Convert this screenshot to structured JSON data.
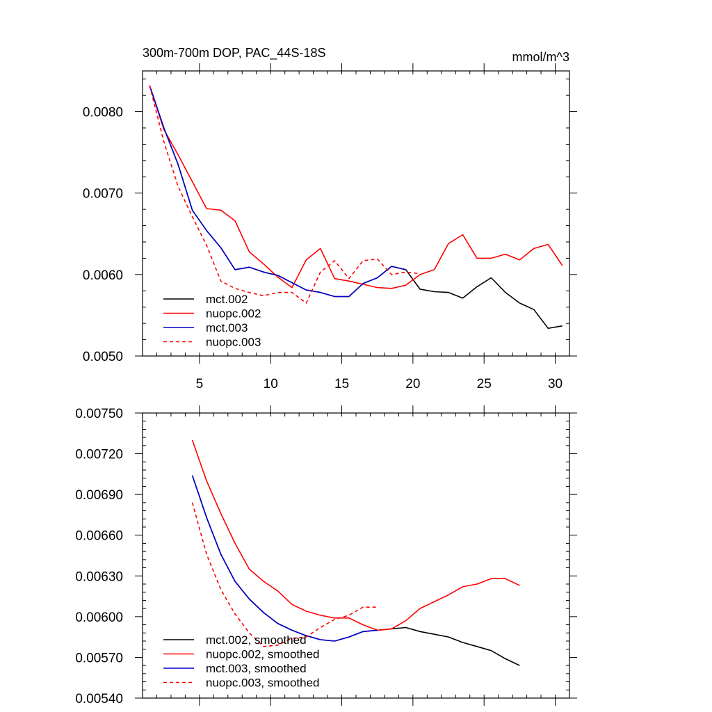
{
  "chart_data": [
    {
      "type": "line",
      "title": "300m-700m DOP, PAC_44S-18S",
      "units": "mmol/m^3",
      "xlim": [
        1,
        31
      ],
      "ylim": [
        0.005,
        0.0085
      ],
      "x_ticks": [
        5,
        10,
        15,
        20,
        25,
        30
      ],
      "x_tick_labels": [
        "5",
        "10",
        "15",
        "20",
        "25",
        "30"
      ],
      "y_ticks": [
        0.005,
        0.006,
        0.007,
        0.008
      ],
      "y_tick_labels": [
        "0.0050",
        "0.0060",
        "0.0070",
        "0.0080"
      ],
      "legend_position": "bottom-left",
      "series": [
        {
          "name": "mct.002",
          "color": "#000000",
          "dash": "solid",
          "x": [
            1.5,
            2.5,
            3.5,
            4.5,
            5.5,
            6.5,
            7.5,
            8.5,
            9.5,
            10.5,
            11.5,
            12.5,
            13.5,
            14.5,
            15.5,
            16.5,
            17.5,
            18.5,
            19.5,
            20.5,
            21.5,
            22.5,
            23.5,
            24.5,
            25.5,
            26.5,
            27.5,
            28.5,
            29.5,
            30.5
          ],
          "values": [
            0.00832,
            0.0078,
            0.00735,
            0.00679,
            0.00654,
            0.00633,
            0.00606,
            0.00609,
            0.00603,
            0.00599,
            0.0059,
            0.00581,
            0.00578,
            0.00573,
            0.00573,
            0.00589,
            0.00596,
            0.0061,
            0.00606,
            0.00582,
            0.00579,
            0.00578,
            0.00571,
            0.00585,
            0.00596,
            0.00578,
            0.00565,
            0.00557,
            0.00534,
            0.00537
          ]
        },
        {
          "name": "nuopc.002",
          "color": "#ff0000",
          "dash": "solid",
          "x": [
            1.5,
            2.5,
            3.5,
            4.5,
            5.5,
            6.5,
            7.5,
            8.5,
            9.5,
            10.5,
            11.5,
            12.5,
            13.5,
            14.5,
            15.5,
            16.5,
            17.5,
            18.5,
            19.5,
            20.5,
            21.5,
            22.5,
            23.5,
            24.5,
            25.5,
            26.5,
            27.5,
            28.5,
            29.5,
            30.5
          ],
          "values": [
            0.00832,
            0.00778,
            0.00747,
            0.00714,
            0.00681,
            0.00679,
            0.00666,
            0.00628,
            0.00613,
            0.00597,
            0.00584,
            0.00618,
            0.00632,
            0.00595,
            0.00592,
            0.00588,
            0.00584,
            0.00583,
            0.00587,
            0.006,
            0.00606,
            0.00638,
            0.00649,
            0.0062,
            0.0062,
            0.00625,
            0.00618,
            0.00632,
            0.00637,
            0.00611
          ]
        },
        {
          "name": "mct.003",
          "color": "#0000cc",
          "dash": "solid",
          "x": [
            1.5,
            2.5,
            3.5,
            4.5,
            5.5,
            6.5,
            7.5,
            8.5,
            9.5,
            10.5,
            11.5,
            12.5,
            13.5,
            14.5,
            15.5,
            16.5,
            17.5,
            18.5,
            19.5
          ],
          "values": [
            0.00832,
            0.0078,
            0.00735,
            0.00679,
            0.00654,
            0.00633,
            0.00606,
            0.00609,
            0.00603,
            0.00599,
            0.0059,
            0.00581,
            0.00578,
            0.00573,
            0.00573,
            0.00589,
            0.00596,
            0.0061,
            0.00606
          ]
        },
        {
          "name": "nuopc.003",
          "color": "#ff0000",
          "dash": "dashed",
          "x": [
            1.5,
            2.5,
            3.5,
            4.5,
            5.5,
            6.5,
            7.5,
            8.5,
            9.5,
            10.5,
            11.5,
            12.5,
            13.5,
            14.5,
            15.5,
            16.5,
            17.5,
            18.5,
            19.5,
            20.5
          ],
          "values": [
            0.00832,
            0.00763,
            0.00708,
            0.00671,
            0.00636,
            0.00592,
            0.00583,
            0.00578,
            0.00574,
            0.00578,
            0.00578,
            0.00565,
            0.00603,
            0.00617,
            0.00595,
            0.00617,
            0.00619,
            0.006,
            0.00603,
            0.00601
          ]
        }
      ]
    },
    {
      "type": "line",
      "xlim": [
        1,
        31
      ],
      "ylim": [
        0.0054,
        0.0075
      ],
      "x_ticks": [
        5,
        10,
        15,
        20,
        25,
        30
      ],
      "y_ticks": [
        0.0054,
        0.0057,
        0.006,
        0.0063,
        0.0066,
        0.0069,
        0.0072,
        0.0075
      ],
      "y_tick_labels": [
        "0.00540",
        "0.00570",
        "0.00600",
        "0.00630",
        "0.00660",
        "0.00690",
        "0.00720",
        "0.00750"
      ],
      "legend_position": "bottom-left",
      "series": [
        {
          "name": "mct.002, smoothed",
          "color": "#000000",
          "dash": "solid",
          "x": [
            4.5,
            5.5,
            6.5,
            7.5,
            8.5,
            9.5,
            10.5,
            11.5,
            12.5,
            13.5,
            14.5,
            15.5,
            16.5,
            17.5,
            18.5,
            19.5,
            20.5,
            21.5,
            22.5,
            23.5,
            24.5,
            25.5,
            26.5,
            27.5
          ],
          "values": [
            0.00704,
            0.00673,
            0.00646,
            0.00626,
            0.00613,
            0.00603,
            0.00595,
            0.0059,
            0.00586,
            0.00583,
            0.00582,
            0.00585,
            0.00589,
            0.0059,
            0.00591,
            0.00592,
            0.00589,
            0.00587,
            0.00585,
            0.00581,
            0.00578,
            0.00575,
            0.00569,
            0.00564
          ]
        },
        {
          "name": "nuopc.002, smoothed",
          "color": "#ff0000",
          "dash": "solid",
          "x": [
            4.5,
            5.5,
            6.5,
            7.5,
            8.5,
            9.5,
            10.5,
            11.5,
            12.5,
            13.5,
            14.5,
            15.5,
            16.5,
            17.5,
            18.5,
            19.5,
            20.5,
            21.5,
            22.5,
            23.5,
            24.5,
            25.5,
            26.5,
            27.5
          ],
          "values": [
            0.0073,
            0.007,
            0.00676,
            0.00654,
            0.00635,
            0.00626,
            0.00619,
            0.00609,
            0.00604,
            0.00601,
            0.00599,
            0.00599,
            0.00594,
            0.0059,
            0.00591,
            0.00597,
            0.00606,
            0.00611,
            0.00616,
            0.00622,
            0.00624,
            0.00628,
            0.00628,
            0.00623
          ]
        },
        {
          "name": "mct.003, smoothed",
          "color": "#0000cc",
          "dash": "solid",
          "x": [
            4.5,
            5.5,
            6.5,
            7.5,
            8.5,
            9.5,
            10.5,
            11.5,
            12.5,
            13.5,
            14.5,
            15.5,
            16.5,
            17.5
          ],
          "values": [
            0.00704,
            0.00673,
            0.00646,
            0.00626,
            0.00613,
            0.00603,
            0.00595,
            0.0059,
            0.00586,
            0.00583,
            0.00582,
            0.00585,
            0.00589,
            0.0059
          ]
        },
        {
          "name": "nuopc.003, smoothed",
          "color": "#ff0000",
          "dash": "dashed",
          "x": [
            4.5,
            5.5,
            6.5,
            7.5,
            8.5,
            9.5,
            10.5,
            11.5,
            12.5,
            13.5,
            14.5,
            15.5,
            16.5,
            17.5
          ],
          "values": [
            0.00684,
            0.00646,
            0.0062,
            0.00602,
            0.00588,
            0.00578,
            0.00579,
            0.00584,
            0.00585,
            0.00592,
            0.00598,
            0.00601,
            0.00607,
            0.00607
          ]
        }
      ]
    }
  ]
}
